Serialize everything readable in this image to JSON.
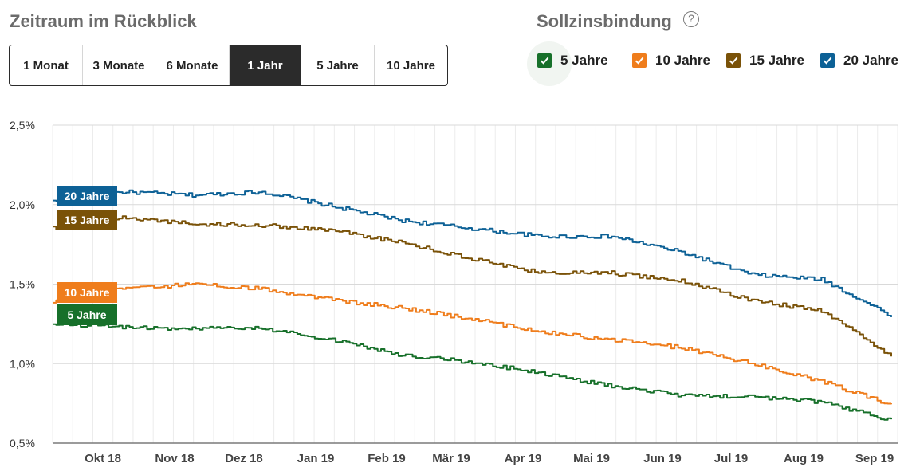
{
  "header": {
    "title": "Zeitraum im Rückblick",
    "periods": [
      {
        "label": "1 Monat",
        "active": false
      },
      {
        "label": "3 Monate",
        "active": false
      },
      {
        "label": "6 Monate",
        "active": false
      },
      {
        "label": "1 Jahr",
        "active": true
      },
      {
        "label": "5 Jahre",
        "active": false
      },
      {
        "label": "10 Jahre",
        "active": false
      }
    ]
  },
  "binding": {
    "title": "Sollzinsbindung",
    "help": "?",
    "items": [
      {
        "label": "5 Jahre",
        "color": "#17702a",
        "checked": true
      },
      {
        "label": "10 Jahre",
        "color": "#ef7d1c",
        "checked": true
      },
      {
        "label": "15 Jahre",
        "color": "#7a5208",
        "checked": true
      },
      {
        "label": "20 Jahre",
        "color": "#0d6196",
        "checked": true
      }
    ]
  },
  "chart_data": {
    "type": "line",
    "y_ticks": [
      "0,5%",
      "1,0%",
      "1,5%",
      "2,0%",
      "2,5%"
    ],
    "ylim": [
      0.5,
      2.5
    ],
    "x_ticks": [
      "Okt 18",
      "Nov 18",
      "Dez 18",
      "Jan 19",
      "Feb 19",
      "Mär 19",
      "Apr 19",
      "Mai 19",
      "Jun 19",
      "Jul 19",
      "Aug 19",
      "Sep 19"
    ],
    "x": [
      "Sep 18",
      "Okt 18",
      "Nov 18",
      "Dez 18",
      "Jan 19",
      "Feb 19",
      "Mär 19",
      "Apr 19",
      "Mai 19",
      "Jun 19",
      "Jul 19",
      "Aug 19",
      "Sep 19"
    ],
    "series": [
      {
        "name": "20 Jahre",
        "color": "#0d6196",
        "values": [
          2.02,
          2.08,
          2.06,
          2.08,
          1.99,
          1.9,
          1.85,
          1.8,
          1.8,
          1.7,
          1.56,
          1.53,
          1.3
        ]
      },
      {
        "name": "15 Jahre",
        "color": "#7a5208",
        "values": [
          1.85,
          1.92,
          1.88,
          1.87,
          1.84,
          1.76,
          1.66,
          1.57,
          1.57,
          1.52,
          1.4,
          1.33,
          1.05
        ]
      },
      {
        "name": "10 Jahre",
        "color": "#ef7d1c",
        "values": [
          1.39,
          1.47,
          1.5,
          1.47,
          1.4,
          1.35,
          1.28,
          1.2,
          1.15,
          1.1,
          1.0,
          0.89,
          0.74
        ]
      },
      {
        "name": "5 Jahre",
        "color": "#17702a",
        "values": [
          1.25,
          1.23,
          1.22,
          1.22,
          1.15,
          1.05,
          1.01,
          0.94,
          0.86,
          0.8,
          0.79,
          0.76,
          0.64
        ]
      }
    ]
  }
}
